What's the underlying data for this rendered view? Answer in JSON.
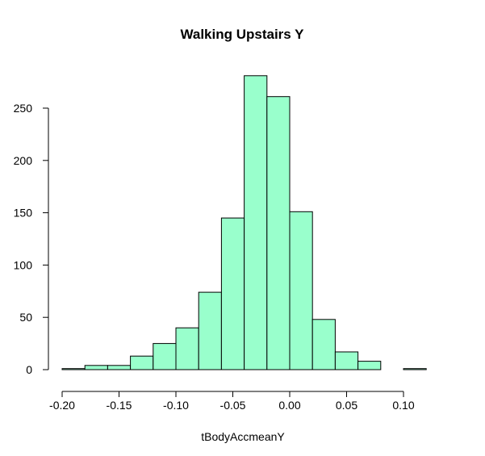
{
  "chart_data": {
    "type": "histogram",
    "title": "Walking Upstairs Y",
    "xlabel": "tBodyAccmeanY",
    "ylabel": "",
    "bar_color": "#99FFCC",
    "bar_edge_color": "#000000",
    "ylabel_color": "#33CCCC",
    "xlim": [
      -0.2,
      0.12
    ],
    "ylim": [
      0,
      280
    ],
    "x_ticks": [
      -0.2,
      -0.15,
      -0.1,
      -0.05,
      0.0,
      0.05,
      0.1
    ],
    "x_tick_labels": [
      "-0.20",
      "-0.15",
      "-0.10",
      "-0.05",
      "0.00",
      "0.05",
      "0.10"
    ],
    "y_ticks": [
      0,
      50,
      100,
      150,
      200,
      250
    ],
    "y_tick_labels": [
      "0",
      "50",
      "100",
      "150",
      "200",
      "250"
    ],
    "bins": [
      {
        "x0": -0.2,
        "x1": -0.18,
        "count": 1
      },
      {
        "x0": -0.18,
        "x1": -0.16,
        "count": 4
      },
      {
        "x0": -0.16,
        "x1": -0.14,
        "count": 4
      },
      {
        "x0": -0.14,
        "x1": -0.12,
        "count": 13
      },
      {
        "x0": -0.12,
        "x1": -0.1,
        "count": 25
      },
      {
        "x0": -0.1,
        "x1": -0.08,
        "count": 40
      },
      {
        "x0": -0.08,
        "x1": -0.06,
        "count": 74
      },
      {
        "x0": -0.06,
        "x1": -0.04,
        "count": 145
      },
      {
        "x0": -0.04,
        "x1": -0.02,
        "count": 281
      },
      {
        "x0": -0.02,
        "x1": 0.0,
        "count": 261
      },
      {
        "x0": 0.0,
        "x1": 0.02,
        "count": 151
      },
      {
        "x0": 0.02,
        "x1": 0.04,
        "count": 48
      },
      {
        "x0": 0.04,
        "x1": 0.06,
        "count": 17
      },
      {
        "x0": 0.06,
        "x1": 0.08,
        "count": 8
      },
      {
        "x0": 0.08,
        "x1": 0.1,
        "count": 0
      },
      {
        "x0": 0.1,
        "x1": 0.12,
        "count": 1
      }
    ]
  }
}
